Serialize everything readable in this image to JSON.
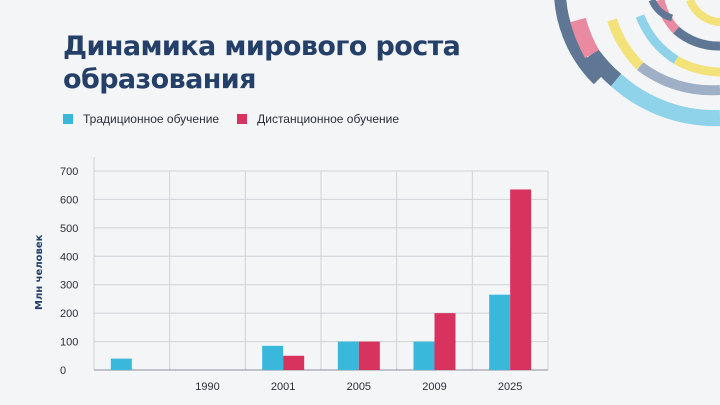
{
  "slide": {
    "title_line1": "Динамика мирового роста",
    "title_line2": "образования"
  },
  "colors": {
    "title": "#243f68",
    "traditional": "#39b8dc",
    "distance": "#d8325f",
    "grid": "#cfd3d8"
  },
  "chart_data": {
    "type": "bar",
    "title": "Динамика мирового роста образования",
    "ylabel": "Млн человек",
    "xlabel": "",
    "categories": [
      "",
      "1990",
      "2001",
      "2005",
      "2009",
      "2025"
    ],
    "series": [
      {
        "name": "Традиционное обучение",
        "values": [
          40,
          0,
          85,
          100,
          100,
          265
        ]
      },
      {
        "name": "Дистанционное обучение",
        "values": [
          0,
          0,
          50,
          100,
          200,
          635
        ]
      }
    ],
    "ylim": [
      0,
      700
    ],
    "yticks": [
      0,
      100,
      200,
      300,
      400,
      500,
      600,
      700
    ],
    "grid": true,
    "legend_position": "top-left"
  }
}
